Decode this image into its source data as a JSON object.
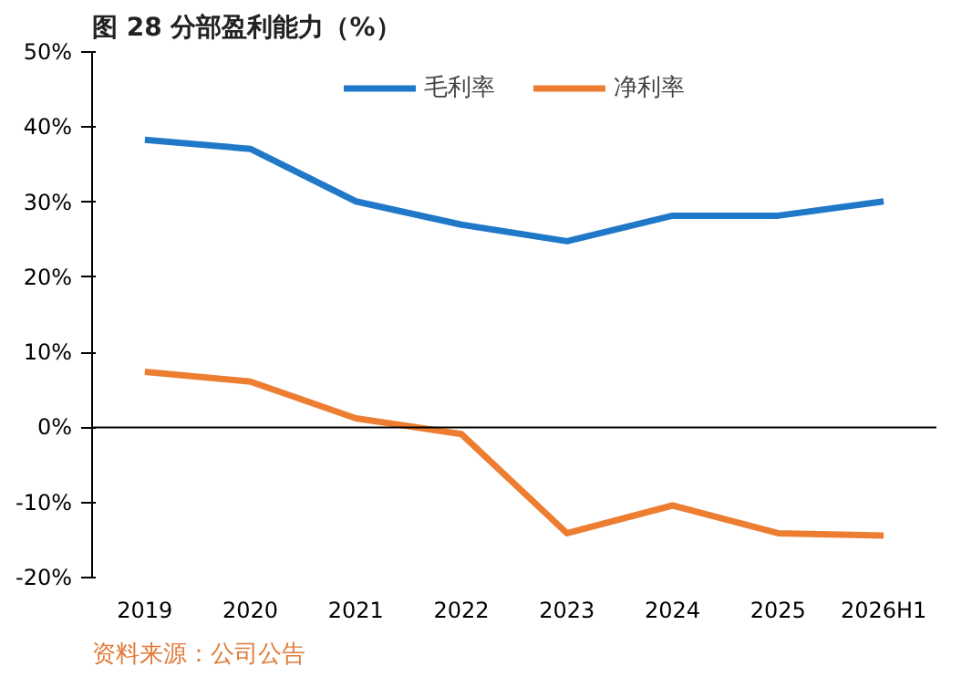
{
  "chart_data": {
    "type": "line",
    "title": "图 28  分部盈利能力（%）",
    "categories": [
      "2019",
      "2020",
      "2021",
      "2022",
      "2023",
      "2024",
      "2025",
      "2026H1"
    ],
    "series": [
      {
        "name": "毛利率",
        "color": "#1f78c8",
        "values": [
          38.3,
          37.1,
          30.1,
          27.0,
          24.8,
          28.2,
          28.2,
          30.1
        ]
      },
      {
        "name": "净利率",
        "color": "#ed7d31",
        "values": [
          7.4,
          6.1,
          1.2,
          -0.9,
          -14.1,
          -10.4,
          -14.1,
          -14.4
        ]
      }
    ],
    "ylim": [
      -20,
      50
    ],
    "yticks": [
      {
        "value": -20,
        "label": "-20%"
      },
      {
        "value": -10,
        "label": "-10%"
      },
      {
        "value": 0,
        "label": "0%"
      },
      {
        "value": 10,
        "label": "10%"
      },
      {
        "value": 20,
        "label": "20%"
      },
      {
        "value": 30,
        "label": "30%"
      },
      {
        "value": 40,
        "label": "40%"
      },
      {
        "value": 50,
        "label": "50%"
      }
    ],
    "ref_lines": [
      {
        "axis": "y",
        "value": 0,
        "label": null,
        "color": "#000000"
      }
    ],
    "grid": false,
    "legend": "top",
    "marker": "none",
    "line_style": "solid",
    "annotations": [
      "资料来源：公司公告"
    ]
  }
}
